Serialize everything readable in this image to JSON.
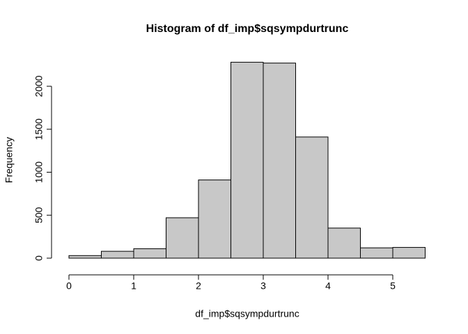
{
  "chart_data": {
    "type": "histogram",
    "title": "Histogram of df_imp$sqsympdurtrunc",
    "x_label": "df_imp$sqsympdurtrunc",
    "y_label": "Frequency",
    "bins": [
      0,
      0.5,
      1,
      1.5,
      2,
      2.5,
      3,
      3.5,
      4,
      4.5,
      5,
      5.5
    ],
    "counts": [
      30,
      80,
      110,
      470,
      910,
      2280,
      2270,
      1410,
      350,
      120,
      125
    ],
    "color": "#c8c8c8",
    "xlim": [
      0,
      5.5
    ],
    "ylim": [
      0,
      2280
    ],
    "xticks": [
      0,
      1,
      2,
      3,
      4,
      5
    ],
    "yticks": [
      0,
      500,
      1000,
      1500,
      2000
    ]
  }
}
